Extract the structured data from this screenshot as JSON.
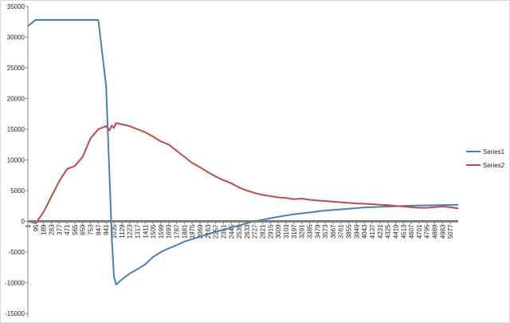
{
  "chart_data": {
    "type": "line",
    "x": [
      1,
      95,
      189,
      283,
      377,
      471,
      565,
      659,
      753,
      847,
      941,
      980,
      1010,
      1035,
      1060,
      1129,
      1223,
      1317,
      1411,
      1505,
      1599,
      1693,
      1787,
      1881,
      1975,
      2069,
      2163,
      2257,
      2351,
      2445,
      2539,
      2633,
      2727,
      2821,
      2915,
      3009,
      3103,
      3197,
      3291,
      3385,
      3479,
      3573,
      3667,
      3761,
      3855,
      3949,
      4043,
      4137,
      4231,
      4325,
      4419,
      4513,
      4607,
      4701,
      4795,
      4889,
      4983,
      5077,
      5171
    ],
    "series": [
      {
        "name": "Series1",
        "color": "#4a7ebb",
        "values": [
          31800,
          32800,
          32800,
          32800,
          32800,
          32800,
          32800,
          32800,
          32800,
          32800,
          22000,
          8000,
          -3000,
          -9000,
          -10300,
          -9500,
          -8500,
          -7800,
          -7000,
          -5800,
          -5000,
          -4400,
          -3900,
          -3300,
          -2900,
          -2500,
          -2100,
          -1700,
          -1400,
          -1000,
          -700,
          -300,
          0,
          250,
          500,
          750,
          950,
          1150,
          1300,
          1450,
          1600,
          1750,
          1850,
          1950,
          2050,
          2150,
          2250,
          2300,
          2350,
          2400,
          2450,
          2500,
          2550,
          2580,
          2600,
          2620,
          2650,
          2680,
          2700
        ]
      },
      {
        "name": "Series2",
        "color": "#be4b48",
        "values": [
          0,
          -300,
          1500,
          4000,
          6500,
          8500,
          9000,
          10500,
          13500,
          15000,
          15500,
          14800,
          15600,
          15200,
          16000,
          15800,
          15500,
          15000,
          14500,
          13800,
          13000,
          12500,
          11500,
          10500,
          9500,
          8800,
          8000,
          7300,
          6700,
          6200,
          5500,
          5000,
          4600,
          4300,
          4100,
          3900,
          3800,
          3600,
          3700,
          3500,
          3400,
          3300,
          3200,
          3100,
          3000,
          2900,
          2850,
          2800,
          2700,
          2650,
          2500,
          2400,
          2300,
          2200,
          2200,
          2300,
          2400,
          2300,
          2100
        ]
      }
    ],
    "xlim": [
      1,
      5171
    ],
    "xticks": [
      1,
      95,
      189,
      283,
      377,
      471,
      565,
      659,
      753,
      847,
      941,
      1035,
      1129,
      1223,
      1317,
      1411,
      1505,
      1599,
      1693,
      1787,
      1881,
      1975,
      2069,
      2163,
      2257,
      2351,
      2445,
      2539,
      2633,
      2727,
      2821,
      2915,
      3009,
      3103,
      3197,
      3291,
      3385,
      3479,
      3573,
      3667,
      3761,
      3855,
      3949,
      4043,
      4137,
      4231,
      4325,
      4419,
      4513,
      4607,
      4701,
      4795,
      4889,
      4983,
      5077
    ],
    "ylim": [
      -15000,
      35000
    ],
    "yticks": [
      -15000,
      -10000,
      -5000,
      0,
      5000,
      10000,
      15000,
      20000,
      25000,
      30000,
      35000
    ],
    "grid": false,
    "legend": "right"
  }
}
